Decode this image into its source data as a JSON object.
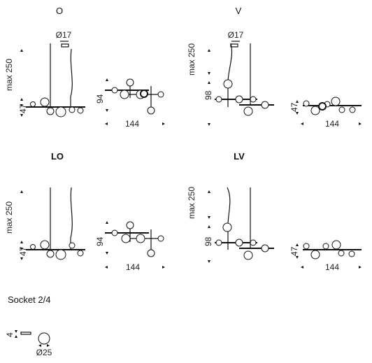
{
  "variants": {
    "o": {
      "title": "O",
      "dia_label": "Ø17",
      "height_label": "max 250",
      "socket_drop": "47",
      "width_label": "144",
      "depth_label": "94"
    },
    "v": {
      "title": "V",
      "dia_label": "Ø17",
      "height_label": "max 250",
      "body_height": "98",
      "socket_drop": "47",
      "width_label": "144"
    },
    "lo": {
      "title": "LO",
      "height_label": "max 250",
      "socket_drop": "47",
      "width_label": "144",
      "depth_label": "94"
    },
    "lv": {
      "title": "LV",
      "height_label": "max 250",
      "body_height": "98",
      "socket_drop": "47",
      "width_label": "144"
    }
  },
  "socket": {
    "title": "Socket 2/4",
    "height_label": "4",
    "dia_label": "Ø25"
  }
}
